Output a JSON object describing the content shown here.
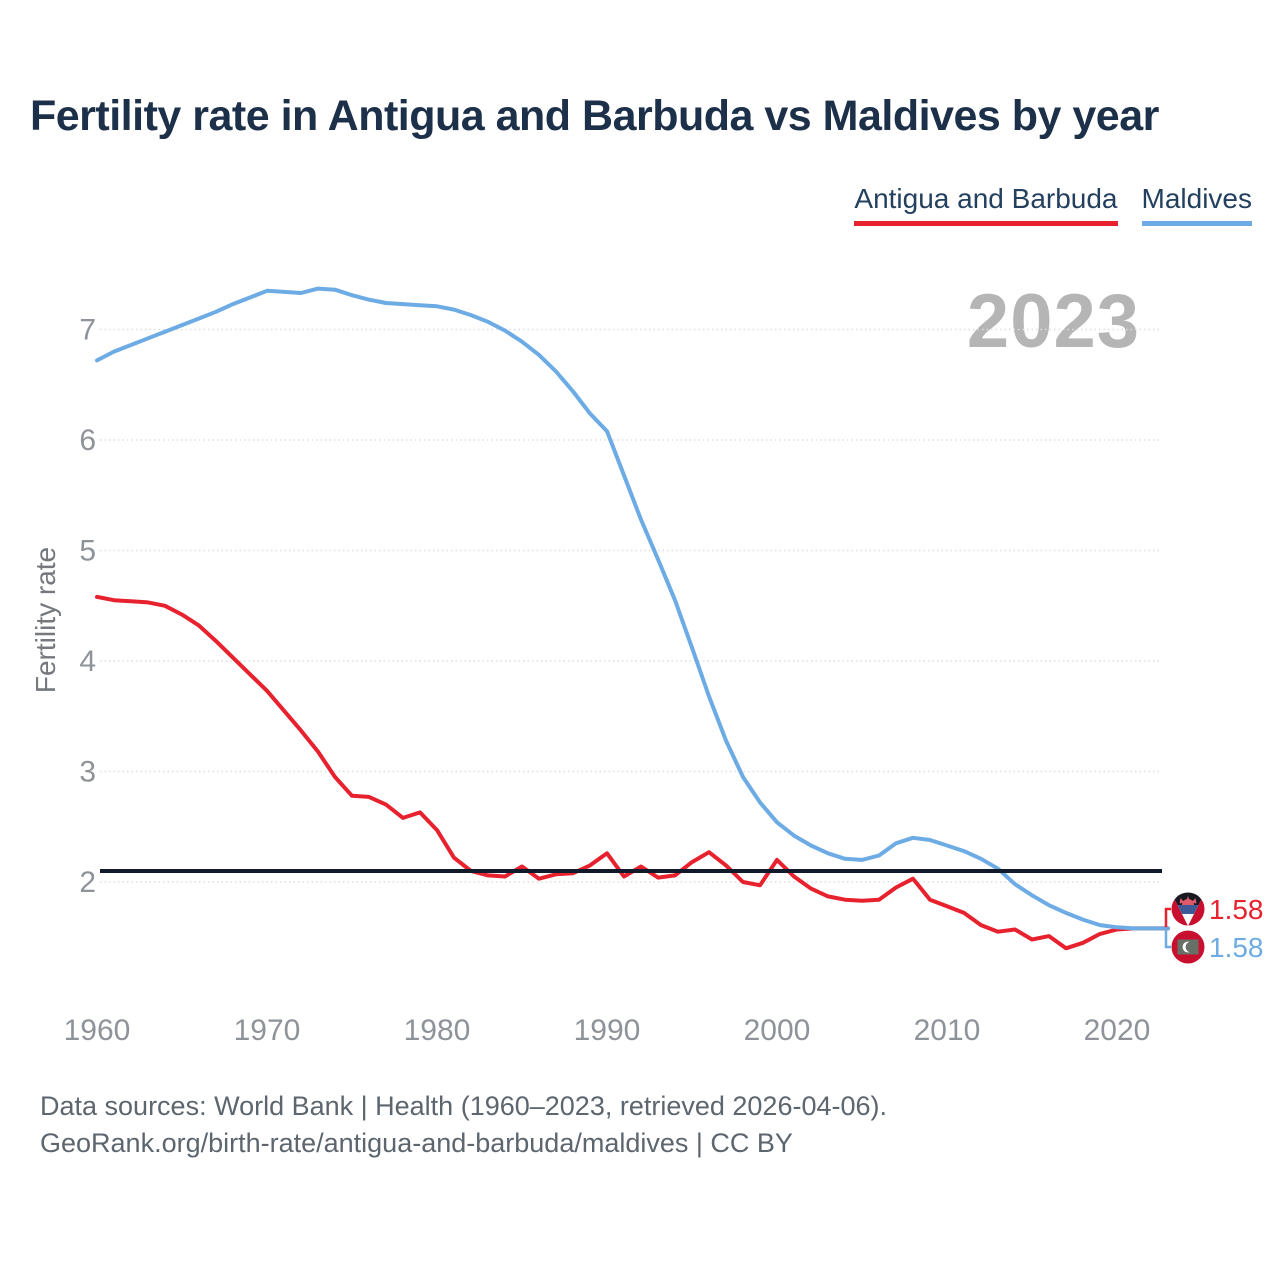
{
  "header": {
    "title": "Fertility rate in Antigua and Barbuda vs Maldives by year"
  },
  "legend": {
    "items": [
      {
        "label": "Antigua and Barbuda",
        "color": "#e8212e"
      },
      {
        "label": "Maldives",
        "color": "#6cabe4"
      }
    ]
  },
  "watermark": "2023",
  "axes": {
    "y_label": "Fertility rate",
    "y_ticks": [
      "2",
      "3",
      "4",
      "5",
      "6",
      "7"
    ],
    "x_ticks": [
      "1960",
      "1970",
      "1980",
      "1990",
      "2000",
      "2010",
      "2020"
    ]
  },
  "end_labels": [
    {
      "series": "Antigua and Barbuda",
      "value": "1.58",
      "color": "#e8212e",
      "flag": "antigua-and-barbuda"
    },
    {
      "series": "Maldives",
      "value": "1.58",
      "color": "#6cabe4",
      "flag": "maldives"
    }
  ],
  "footer": {
    "line1": "Data sources: World Bank | Health (1960–2023, retrieved 2026-04-06).",
    "line2": "GeoRank.org/birth-rate/antigua-and-barbuda/maldives | CC BY"
  },
  "chart_data": {
    "type": "line",
    "title": "Fertility rate in Antigua and Barbuda vs Maldives by year",
    "xlabel": "",
    "ylabel": "Fertility rate",
    "grid": true,
    "legend_position": "top-right",
    "x_range": [
      1960,
      2023
    ],
    "ylim": [
      1.35,
      7.6
    ],
    "y_ticks": [
      2,
      3,
      4,
      5,
      6,
      7
    ],
    "x_ticks": [
      1960,
      1970,
      1980,
      1990,
      2000,
      2010,
      2020
    ],
    "reference_line": {
      "value": 2.1,
      "color": "#111a2b"
    },
    "x": [
      1960,
      1961,
      1962,
      1963,
      1964,
      1965,
      1966,
      1967,
      1968,
      1969,
      1970,
      1971,
      1972,
      1973,
      1974,
      1975,
      1976,
      1977,
      1978,
      1979,
      1980,
      1981,
      1982,
      1983,
      1984,
      1985,
      1986,
      1987,
      1988,
      1989,
      1990,
      1991,
      1992,
      1993,
      1994,
      1995,
      1996,
      1997,
      1998,
      1999,
      2000,
      2001,
      2002,
      2003,
      2004,
      2005,
      2006,
      2007,
      2008,
      2009,
      2010,
      2011,
      2012,
      2013,
      2014,
      2015,
      2016,
      2017,
      2018,
      2019,
      2020,
      2021,
      2022,
      2023
    ],
    "series": [
      {
        "name": "Antigua and Barbuda",
        "color": "#e8212e",
        "final_value": 1.58,
        "values": [
          4.58,
          4.55,
          4.54,
          4.53,
          4.5,
          4.42,
          4.32,
          4.18,
          4.03,
          3.88,
          3.73,
          3.55,
          3.37,
          3.18,
          2.95,
          2.78,
          2.77,
          2.7,
          2.58,
          2.63,
          2.47,
          2.22,
          2.1,
          2.06,
          2.05,
          2.14,
          2.03,
          2.07,
          2.08,
          2.15,
          2.26,
          2.05,
          2.14,
          2.04,
          2.06,
          2.18,
          2.27,
          2.15,
          2.0,
          1.97,
          2.2,
          2.05,
          1.94,
          1.87,
          1.84,
          1.83,
          1.84,
          1.95,
          2.03,
          1.84,
          1.78,
          1.72,
          1.61,
          1.55,
          1.57,
          1.48,
          1.51,
          1.4,
          1.45,
          1.53,
          1.57,
          1.58,
          1.58,
          1.58
        ]
      },
      {
        "name": "Maldives",
        "color": "#6cabe4",
        "final_value": 1.58,
        "values": [
          6.72,
          6.8,
          6.86,
          6.92,
          6.98,
          7.04,
          7.1,
          7.16,
          7.23,
          7.29,
          7.35,
          7.34,
          7.33,
          7.37,
          7.36,
          7.31,
          7.27,
          7.24,
          7.23,
          7.22,
          7.21,
          7.18,
          7.13,
          7.07,
          6.99,
          6.89,
          6.77,
          6.62,
          6.44,
          6.24,
          6.08,
          5.68,
          5.28,
          4.92,
          4.55,
          4.12,
          3.68,
          3.28,
          2.95,
          2.72,
          2.54,
          2.42,
          2.33,
          2.26,
          2.21,
          2.2,
          2.24,
          2.35,
          2.4,
          2.38,
          2.33,
          2.28,
          2.21,
          2.12,
          1.98,
          1.88,
          1.79,
          1.72,
          1.66,
          1.61,
          1.59,
          1.58,
          1.58,
          1.58
        ]
      }
    ]
  }
}
